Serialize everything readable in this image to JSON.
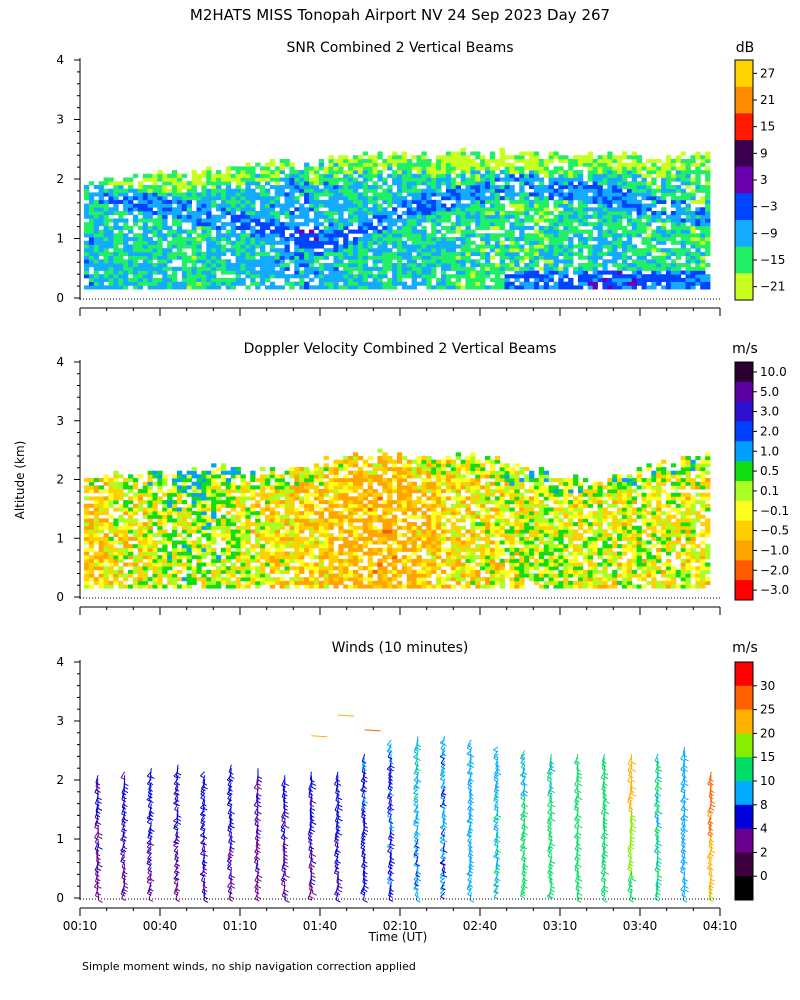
{
  "figure": {
    "title": "M2HATS MISS Tonopah Airport NV  24 Sep 2023 Day 267",
    "y_axis_label": "Altitude (km)",
    "x_axis_label": "Time (UT)",
    "footnote": "Simple moment winds, no ship navigation correction applied"
  },
  "chart_data": [
    {
      "type": "heatmap",
      "title": "SNR Combined 2 Vertical Beams",
      "x_range": [
        "00:10",
        "04:10"
      ],
      "y_range_km": [
        0,
        4
      ],
      "y_ticks": [
        "0",
        "1",
        "2",
        "3",
        "4"
      ],
      "colorbar": {
        "unit": "dB",
        "labels": [
          "27",
          "21",
          "15",
          "9",
          "3",
          "−3",
          "−9",
          "−15",
          "−21"
        ],
        "colors": [
          "#ffd400",
          "#ff8c00",
          "#ff1a00",
          "#3c0050",
          "#6a00b0",
          "#0044ff",
          "#14aaff",
          "#22ee66",
          "#c8ff20"
        ]
      },
      "data_top_km": [
        1.9,
        2.0,
        2.0,
        2.05,
        2.1,
        2.15,
        2.2,
        2.25,
        2.2,
        2.3,
        2.4,
        2.45,
        2.4,
        2.35,
        2.4,
        2.45,
        2.4,
        2.35,
        2.4,
        2.45,
        2.4,
        2.35,
        2.4,
        2.45
      ],
      "dominant_snr_dB": [
        -10,
        -12,
        -12,
        -13,
        -14,
        -12,
        -11,
        -10,
        -9,
        -10,
        -12,
        -13,
        -12,
        -13,
        -14,
        -14,
        -15,
        -14,
        -13,
        -12,
        -13,
        -14,
        -14,
        -15
      ],
      "strong_echo_layer_km": [
        1.8,
        1.7,
        1.6,
        1.5,
        1.4,
        1.3,
        1.2,
        1.1,
        1.0,
        0.9,
        1.1,
        1.3,
        1.5,
        1.6,
        1.7,
        1.8,
        1.9,
        1.8,
        1.8,
        1.7,
        1.6,
        1.5,
        1.4,
        1.3
      ]
    },
    {
      "type": "heatmap",
      "title": "Doppler Velocity Combined 2 Vertical Beams",
      "x_range": [
        "00:10",
        "04:10"
      ],
      "y_range_km": [
        0,
        4
      ],
      "y_ticks": [
        "0",
        "1",
        "2",
        "3",
        "4"
      ],
      "colorbar": {
        "unit": "m/s",
        "labels": [
          "10.0",
          "5.0",
          "3.0",
          "2.0",
          "1.0",
          "0.5",
          "0.1",
          "−0.1",
          "−0.5",
          "−1.0",
          "−2.0",
          "−3.0"
        ],
        "colors": [
          "#2a0030",
          "#5a00a0",
          "#2e10d0",
          "#0040ff",
          "#00a0ff",
          "#12dd12",
          "#aaff22",
          "#ffff22",
          "#ffd000",
          "#ffa500",
          "#ff5a00",
          "#ff0000"
        ]
      },
      "data_top_km": [
        2.0,
        2.05,
        2.1,
        2.1,
        2.15,
        2.2,
        2.15,
        2.1,
        2.2,
        2.3,
        2.45,
        2.4,
        2.35,
        2.3,
        2.4,
        2.3,
        2.2,
        2.1,
        2.0,
        1.9,
        2.1,
        2.2,
        2.3,
        2.45
      ],
      "dominant_velocity_ms": [
        -0.5,
        -0.3,
        -0.2,
        0.1,
        0.2,
        0.1,
        -0.1,
        -0.3,
        -0.5,
        -0.6,
        -0.8,
        -0.9,
        -0.7,
        -0.5,
        -0.4,
        -0.2,
        -0.1,
        0.0,
        -0.1,
        -0.2,
        -0.1,
        -0.1,
        -0.2,
        -0.1
      ]
    },
    {
      "type": "scatter",
      "title": "Winds (10 minutes)",
      "x_range": [
        "00:10",
        "04:10"
      ],
      "y_range_km": [
        0,
        4
      ],
      "y_ticks": [
        "0",
        "1",
        "2",
        "3",
        "4"
      ],
      "x_ticks": [
        "00:10",
        "00:40",
        "01:10",
        "01:40",
        "02:10",
        "02:40",
        "03:10",
        "03:40",
        "04:10"
      ],
      "colorbar": {
        "unit": "m/s",
        "labels": [
          "30",
          "25",
          "20",
          "15",
          "10",
          "8",
          "4",
          "2",
          "0"
        ],
        "colors": [
          "#ff0000",
          "#ff6000",
          "#ffb000",
          "#88ee00",
          "#00dd66",
          "#00aaff",
          "#0000dd",
          "#6a0090",
          "#3c0040",
          "#000000"
        ]
      },
      "profile_times_min_after_0010": [
        0,
        10,
        20,
        30,
        40,
        50,
        60,
        70,
        80,
        90,
        100,
        110,
        120,
        130,
        140,
        150,
        160,
        170,
        180,
        190,
        200,
        210,
        220,
        230
      ],
      "wind_speed_low_ms": [
        3,
        3,
        3,
        3,
        4,
        3,
        3,
        3,
        3,
        4,
        6,
        7,
        8,
        8,
        9,
        10,
        12,
        12,
        13,
        13,
        12,
        11,
        9,
        20
      ],
      "wind_speed_high_ms": [
        4,
        5,
        6,
        5,
        5,
        5,
        4,
        5,
        5,
        6,
        8,
        8,
        10,
        9,
        9,
        9,
        10,
        10,
        11,
        12,
        24,
        10,
        9,
        28
      ],
      "wind_direction_deg": [
        200,
        210,
        220,
        220,
        215,
        210,
        205,
        200,
        195,
        200,
        210,
        215,
        220,
        225,
        225,
        220,
        215,
        210,
        205,
        200,
        200,
        205,
        210,
        210
      ],
      "top_km": [
        2.1,
        2.2,
        2.25,
        2.3,
        2.2,
        2.3,
        2.25,
        2.1,
        2.2,
        2.2,
        2.5,
        2.7,
        2.8,
        2.8,
        2.7,
        2.6,
        2.55,
        2.5,
        2.5,
        2.5,
        2.45,
        2.45,
        2.6,
        2.2
      ]
    }
  ]
}
